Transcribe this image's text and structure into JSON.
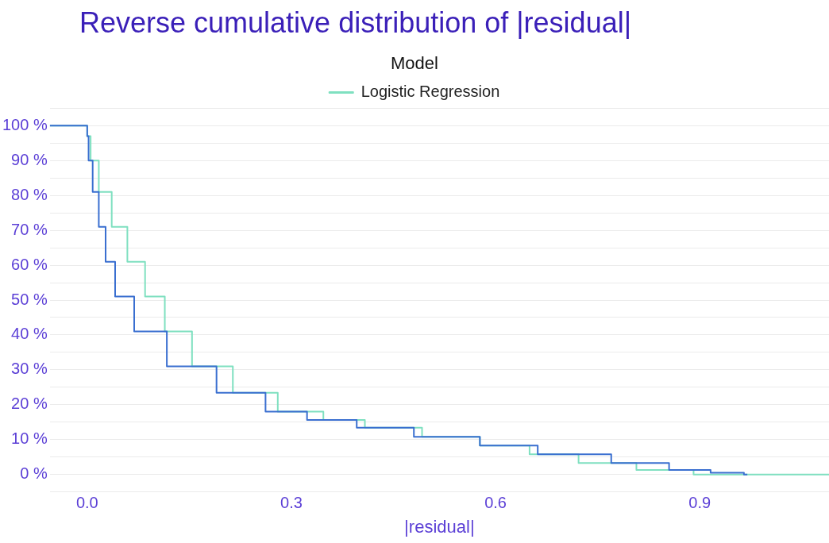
{
  "chart_data": {
    "type": "step",
    "title": "Reverse cumulative distribution of |residual|",
    "xlabel": "|residual|",
    "legend_title": "Model",
    "legend": "top",
    "grid": "y",
    "marker": "none",
    "line_style": "solid",
    "xlim": [
      -0.055,
      1.09
    ],
    "xticks": [
      {
        "value": 0,
        "label": "0.0"
      },
      0.3,
      0.6,
      0.9
    ],
    "ylim": [
      -5,
      105
    ],
    "yticks": [
      {
        "value": -5,
        "label": null
      },
      {
        "value": 0,
        "label": "0 %"
      },
      {
        "value": 5,
        "label": null
      },
      {
        "value": 10,
        "label": "10 %"
      },
      {
        "value": 15,
        "label": null
      },
      {
        "value": 20,
        "label": "20 %"
      },
      {
        "value": 25,
        "label": null
      },
      {
        "value": 30,
        "label": "30 %"
      },
      {
        "value": 35,
        "label": null
      },
      {
        "value": 40,
        "label": "40 %"
      },
      {
        "value": 45,
        "label": null
      },
      {
        "value": 50,
        "label": "50 %"
      },
      {
        "value": 55,
        "label": null
      },
      {
        "value": 60,
        "label": "60 %"
      },
      {
        "value": 65,
        "label": null
      },
      {
        "value": 70,
        "label": "70 %"
      },
      {
        "value": 75,
        "label": null
      },
      {
        "value": 80,
        "label": "80 %"
      },
      {
        "value": 85,
        "label": null
      },
      {
        "value": 90,
        "label": "90 %"
      },
      {
        "value": 95,
        "label": null
      },
      {
        "value": 100,
        "label": "100 %"
      },
      {
        "value": 105,
        "label": null
      }
    ],
    "series": [
      {
        "color": "#3a6fd0",
        "x": [
          -0.055,
          0,
          0.002,
          0.008,
          0.017,
          0.027,
          0.041,
          0.069,
          0.117,
          0.19,
          0.262,
          0.323,
          0.396,
          0.48,
          0.577,
          0.662,
          0.77,
          0.855,
          0.916,
          0.965,
          0.97
        ],
        "values": [
          100,
          100,
          97,
          90,
          81,
          71,
          61,
          51,
          41,
          31,
          23.4,
          18,
          15.6,
          13.4,
          10.8,
          8.3,
          5.8,
          3.3,
          1.3,
          0.5,
          0
        ]
      },
      {
        "name": "Logistic Regression",
        "color": "#7fe0c0",
        "x": [
          -0.055,
          0,
          0.005,
          0.017,
          0.036,
          0.059,
          0.085,
          0.114,
          0.154,
          0.214,
          0.28,
          0.347,
          0.408,
          0.492,
          0.577,
          0.65,
          0.722,
          0.807,
          0.891,
          0.97,
          1.09
        ],
        "values": [
          100,
          100,
          97,
          90,
          81,
          71,
          61,
          51,
          41,
          31,
          23.4,
          18,
          15.6,
          13.4,
          10.8,
          8.3,
          5.8,
          3.3,
          1.3,
          0,
          0
        ]
      }
    ]
  }
}
